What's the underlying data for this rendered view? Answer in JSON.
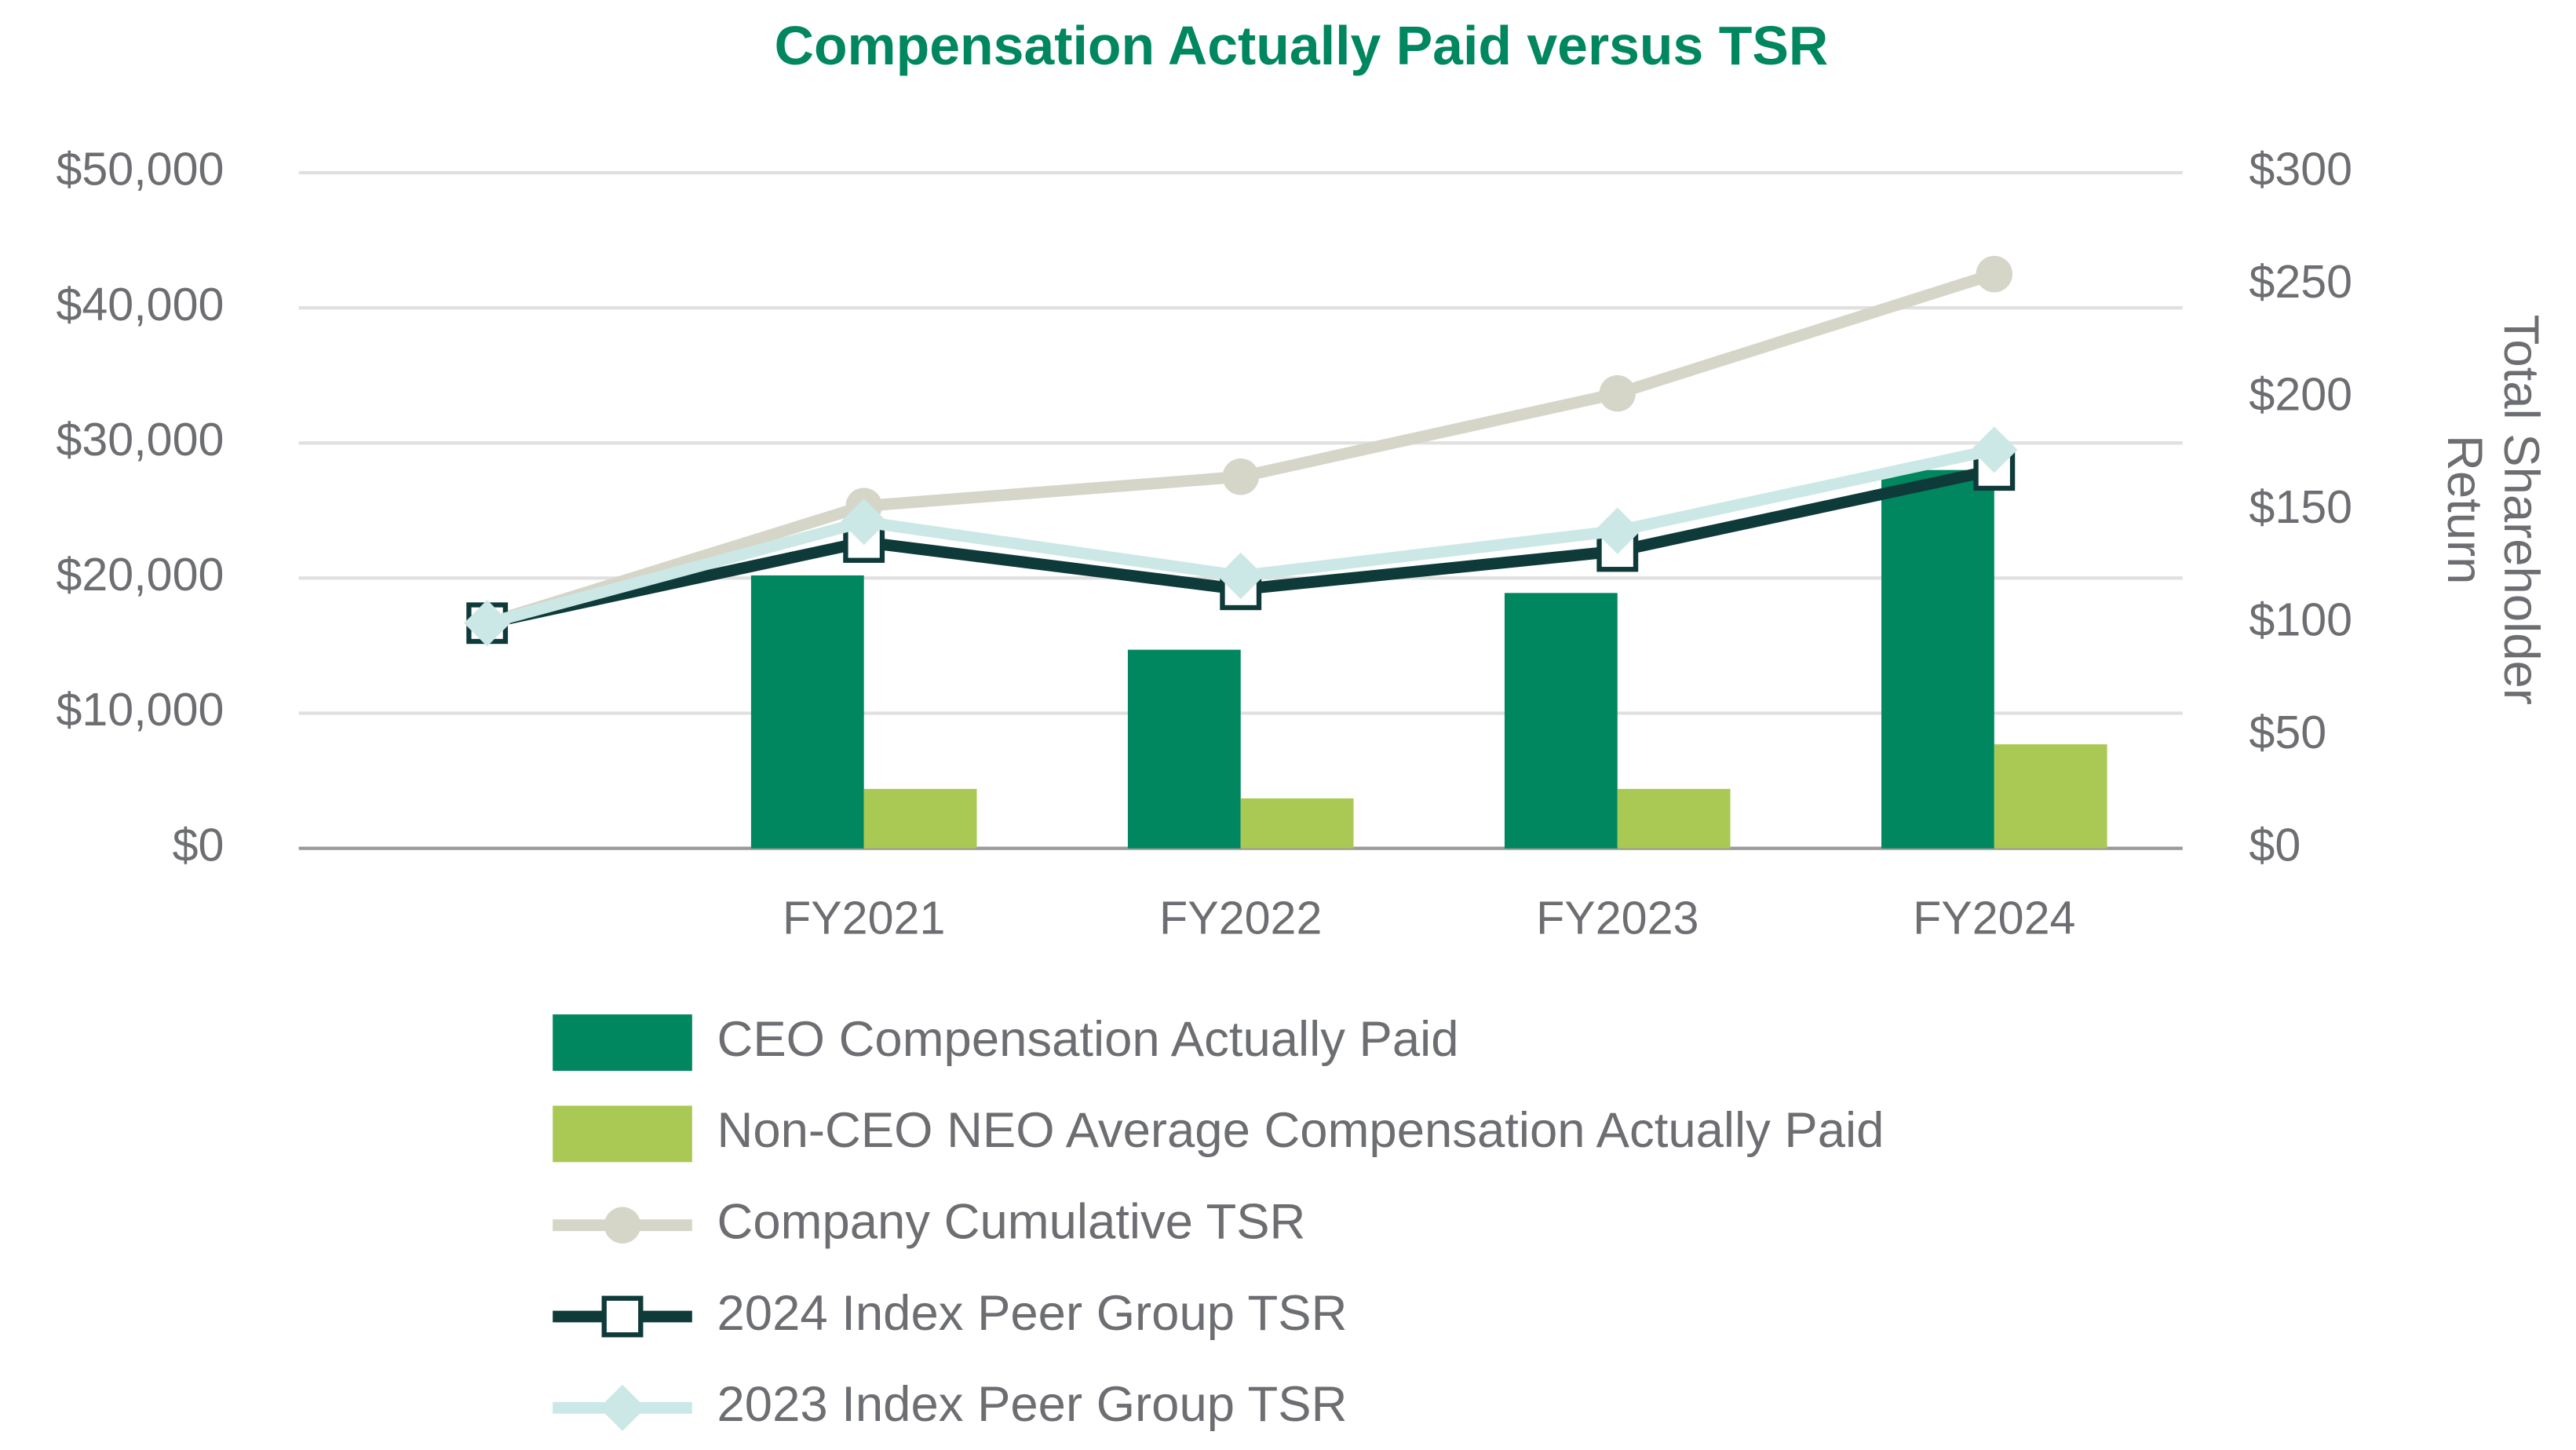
{
  "chart_data": {
    "type": "bar_line",
    "title": "Compensation Actually Paid versus TSR",
    "categories": [
      null,
      "FY2021",
      "FY2022",
      "FY2023",
      "FY2024"
    ],
    "y2_label": "Total Shareholder Return",
    "ylim": [
      0,
      50000
    ],
    "yticks": [
      {
        "value": 0,
        "label": "$0"
      },
      {
        "value": 10000,
        "label": "$10,000"
      },
      {
        "value": 20000,
        "label": "$20,000"
      },
      {
        "value": 30000,
        "label": "$30,000"
      },
      {
        "value": 40000,
        "label": "$40,000"
      },
      {
        "value": 50000,
        "label": "$50,000"
      }
    ],
    "y2lim": [
      0,
      300
    ],
    "y2ticks": [
      {
        "value": 0,
        "label": "$0"
      },
      {
        "value": 50,
        "label": "$50"
      },
      {
        "value": 100,
        "label": "$100"
      },
      {
        "value": 150,
        "label": "$150"
      },
      {
        "value": 200,
        "label": "$200"
      },
      {
        "value": 250,
        "label": "$250"
      },
      {
        "value": 300,
        "label": "$300"
      }
    ],
    "grid": true,
    "legend": "bottom",
    "series": [
      {
        "name": "CEO Compensation Actually Paid",
        "type": "bar",
        "color": "#00875f",
        "values": [
          null,
          20200,
          14700,
          18900,
          28000
        ]
      },
      {
        "name": "Non-CEO NEO Average Compensation Actually Paid",
        "type": "bar",
        "color": "#a9c954",
        "values": [
          null,
          4400,
          3700,
          4400,
          7700
        ]
      },
      {
        "name": "Company Cumulative TSR",
        "type": "line",
        "marker": "circle",
        "axis": "y2",
        "color": "#d5d5c8",
        "values": [
          100,
          152,
          165,
          202,
          255
        ]
      },
      {
        "name": "2024 Index Peer Group TSR",
        "type": "line",
        "marker": "square",
        "axis": "y2",
        "color": "#0e3b3a",
        "values": [
          100,
          136,
          115,
          132,
          168
        ]
      },
      {
        "name": "2023 Index Peer Group TSR",
        "type": "line",
        "marker": "diamond",
        "axis": "y2",
        "color": "#cce8e6",
        "values": [
          100,
          145,
          121,
          141,
          177
        ]
      }
    ]
  }
}
